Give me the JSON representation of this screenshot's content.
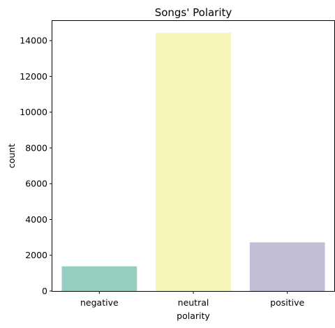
{
  "chart_data": {
    "type": "bar",
    "title": "Songs' Polarity",
    "xlabel": "polarity",
    "ylabel": "count",
    "categories": [
      "negative",
      "neutral",
      "positive"
    ],
    "values": [
      1380,
      14440,
      2720
    ],
    "colors": [
      "#96cdc1",
      "#f6f6b9",
      "#c1bed6"
    ],
    "ylim": [
      0,
      15100
    ],
    "yticks": [
      0,
      2000,
      4000,
      6000,
      8000,
      10000,
      12000,
      14000
    ],
    "grid": false
  }
}
